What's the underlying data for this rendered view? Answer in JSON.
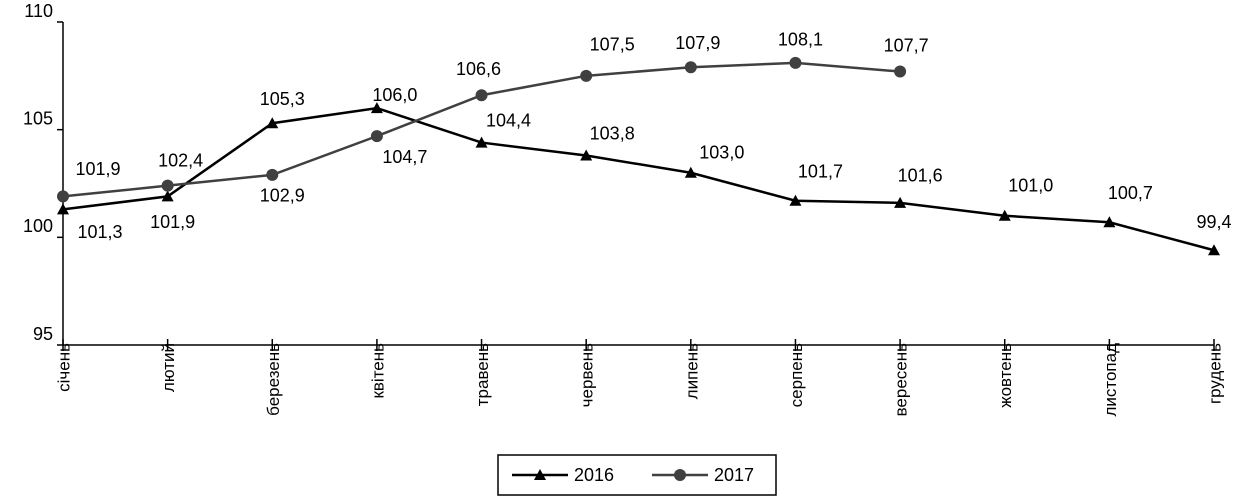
{
  "chart_data": {
    "type": "line",
    "categories": [
      "січень",
      "лютий",
      "березень",
      "квітень",
      "травень",
      "червень",
      "липень",
      "серпень",
      "вересень",
      "жовтень",
      "листопад",
      "грудень"
    ],
    "series": [
      {
        "name": "2016",
        "color": "#000000",
        "marker": "triangle",
        "values": [
          101.3,
          101.9,
          105.3,
          106.0,
          104.4,
          103.8,
          103.0,
          101.7,
          101.6,
          101.0,
          100.7,
          99.4
        ],
        "value_labels": [
          "101,3",
          "101,9",
          "105,3",
          "106,0",
          "104,4",
          "103,8",
          "103,0",
          "101,7",
          "101,6",
          "101,0",
          "100,7",
          "99,4"
        ]
      },
      {
        "name": "2017",
        "color": "#404040",
        "marker": "circle",
        "values": [
          101.9,
          102.4,
          102.9,
          104.7,
          106.6,
          107.5,
          107.9,
          108.1,
          107.7,
          null,
          null,
          null
        ],
        "value_labels": [
          "101,9",
          "102,4",
          "102,9",
          "104,7",
          "106,6",
          "107,5",
          "107,9",
          "108,1",
          "107,7",
          null,
          null,
          null
        ]
      }
    ],
    "ylim": [
      95,
      110
    ],
    "yticks": [
      95,
      100,
      105,
      110
    ],
    "grid": false,
    "legend": "bottom"
  }
}
